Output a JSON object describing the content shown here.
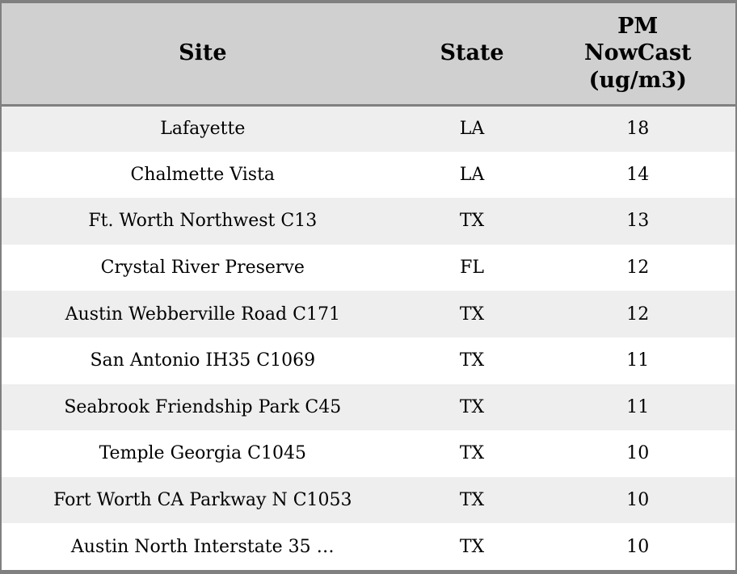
{
  "chart_data": {
    "type": "table",
    "columns": [
      {
        "id": "site",
        "label": "Site"
      },
      {
        "id": "state",
        "label": "State"
      },
      {
        "id": "pm_nowcast",
        "label": "PM NowCast (ug/m3)"
      }
    ],
    "rows": [
      {
        "site": "Lafayette",
        "state": "LA",
        "pm_nowcast": 18
      },
      {
        "site": "Chalmette Vista",
        "state": "LA",
        "pm_nowcast": 14
      },
      {
        "site": "Ft. Worth Northwest C13",
        "state": "TX",
        "pm_nowcast": 13
      },
      {
        "site": "Crystal River Preserve",
        "state": "FL",
        "pm_nowcast": 12
      },
      {
        "site": "Austin Webberville Road C171",
        "state": "TX",
        "pm_nowcast": 12
      },
      {
        "site": "San Antonio IH35 C1069",
        "state": "TX",
        "pm_nowcast": 11
      },
      {
        "site": "Seabrook Friendship Park C45",
        "state": "TX",
        "pm_nowcast": 11
      },
      {
        "site": "Temple Georgia C1045",
        "state": "TX",
        "pm_nowcast": 10
      },
      {
        "site": "Fort Worth CA Parkway N C1053",
        "state": "TX",
        "pm_nowcast": 10
      },
      {
        "site": "Austin North Interstate 35 …",
        "state": "TX",
        "pm_nowcast": 10
      }
    ],
    "layout": {
      "striped": true,
      "header_lines_pm_column": [
        "PM",
        "NowCast",
        "(ug/m3)"
      ]
    }
  },
  "colors": {
    "header_bg": "#d0d0d0",
    "row_stripe_bg": "#eeeeee",
    "row_bg": "#ffffff",
    "border": "#808080",
    "text": "#000000"
  }
}
